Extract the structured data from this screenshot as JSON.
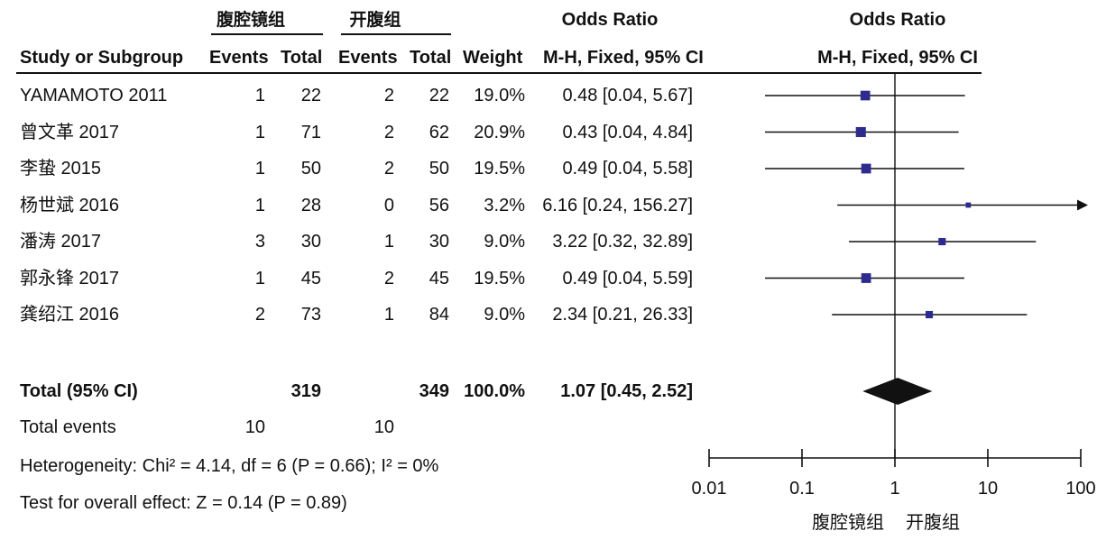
{
  "header": {
    "group1": "腹腔镜组",
    "group2": "开腹组",
    "or_title_table": "Odds Ratio",
    "or_title_plot": "Odds Ratio",
    "col_study": "Study or Subgroup",
    "col_events1": "Events",
    "col_total1": "Total",
    "col_events2": "Events",
    "col_total2": "Total",
    "col_weight": "Weight",
    "col_method_table": "M-H, Fixed, 95% CI",
    "col_method_plot": "M-H, Fixed, 95% CI"
  },
  "summary": {
    "label": "Total (95% CI)",
    "total1": "319",
    "total2": "349",
    "weight": "100.0%",
    "ci": "1.07 [0.45, 2.52]",
    "events_label": "Total events",
    "events1": "10",
    "events2": "10",
    "heterogeneity": "Heterogeneity: Chi² = 4.14, df = 6 (P = 0.66); I² = 0%",
    "overall": "Test for overall effect: Z = 0.14 (P = 0.89)"
  },
  "chart_data": {
    "type": "forest",
    "x_scale": "log",
    "xlim": [
      0.01,
      100
    ],
    "ticks": [
      {
        "value": 0.01,
        "label": "0.01"
      },
      {
        "value": 0.1,
        "label": "0.1"
      },
      {
        "value": 1,
        "label": "1"
      },
      {
        "value": 10,
        "label": "10"
      },
      {
        "value": 100,
        "label": "100"
      }
    ],
    "xlabel_left": "腹腔镜组",
    "xlabel_right": "开腹组",
    "marker_color": "#2e2b8f",
    "studies": [
      {
        "name": "YAMAMOTO 2011",
        "events1": "1",
        "total1": "22",
        "events2": "2",
        "total2": "22",
        "weight": "19.0%",
        "ci_text": "0.48 [0.04, 5.67]",
        "or": 0.48,
        "lo": 0.04,
        "hi": 5.67,
        "w": 19.0
      },
      {
        "name": "曾文革 2017",
        "events1": "1",
        "total1": "71",
        "events2": "2",
        "total2": "62",
        "weight": "20.9%",
        "ci_text": "0.43 [0.04, 4.84]",
        "or": 0.43,
        "lo": 0.04,
        "hi": 4.84,
        "w": 20.9
      },
      {
        "name": "李蛰 2015",
        "events1": "1",
        "total1": "50",
        "events2": "2",
        "total2": "50",
        "weight": "19.5%",
        "ci_text": "0.49 [0.04, 5.58]",
        "or": 0.49,
        "lo": 0.04,
        "hi": 5.58,
        "w": 19.5
      },
      {
        "name": "杨世斌 2016",
        "events1": "1",
        "total1": "28",
        "events2": "0",
        "total2": "56",
        "weight": "3.2%",
        "ci_text": "6.16 [0.24, 156.27]",
        "or": 6.16,
        "lo": 0.24,
        "hi": 156.27,
        "w": 3.2
      },
      {
        "name": "潘涛 2017",
        "events1": "3",
        "total1": "30",
        "events2": "1",
        "total2": "30",
        "weight": "9.0%",
        "ci_text": "3.22 [0.32, 32.89]",
        "or": 3.22,
        "lo": 0.32,
        "hi": 32.89,
        "w": 9.0
      },
      {
        "name": "郭永锋 2017",
        "events1": "1",
        "total1": "45",
        "events2": "2",
        "total2": "45",
        "weight": "19.5%",
        "ci_text": "0.49 [0.04, 5.59]",
        "or": 0.49,
        "lo": 0.04,
        "hi": 5.59,
        "w": 19.5
      },
      {
        "name": "龚绍江 2016",
        "events1": "2",
        "total1": "73",
        "events2": "1",
        "total2": "84",
        "weight": "9.0%",
        "ci_text": "2.34 [0.21, 26.33]",
        "or": 2.34,
        "lo": 0.21,
        "hi": 26.33,
        "w": 9.0
      }
    ],
    "pooled": {
      "or": 1.07,
      "lo": 0.45,
      "hi": 2.52
    }
  }
}
